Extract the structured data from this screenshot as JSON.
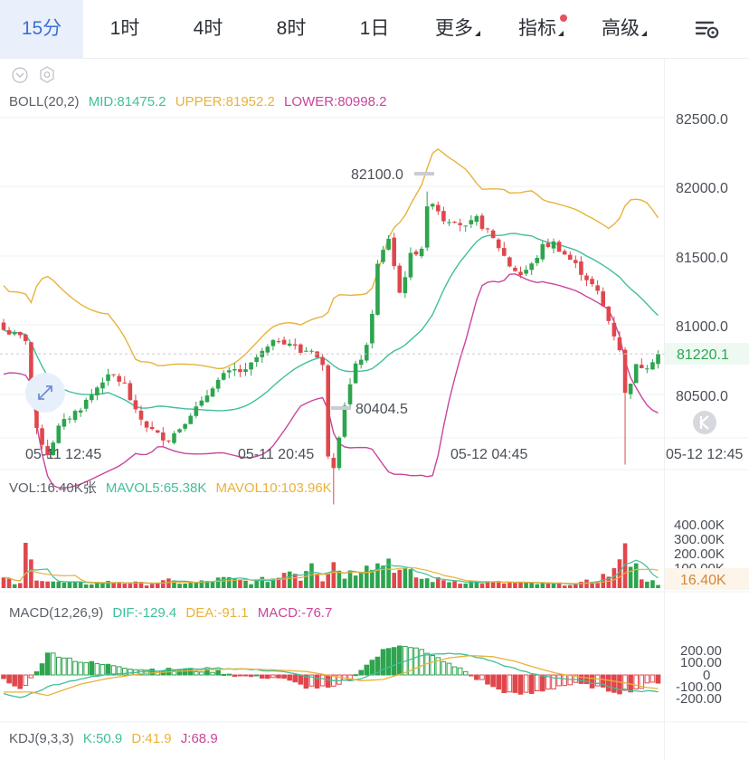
{
  "toolbar": {
    "tabs": [
      {
        "label": "15分",
        "active": true
      },
      {
        "label": "1时"
      },
      {
        "label": "4时"
      },
      {
        "label": "8时"
      },
      {
        "label": "1日"
      },
      {
        "label": "更多",
        "dropdown": true
      },
      {
        "label": "指标",
        "dropdown": true,
        "badge": true
      },
      {
        "label": "高级",
        "dropdown": true
      }
    ],
    "settings_icon": "chart-settings-icon"
  },
  "colors": {
    "up": "#2ea44f",
    "down": "#e0474c",
    "mid": "#3fbf9b",
    "upper": "#e9b23a",
    "lower": "#c9459b",
    "accent": "#3c6fd6"
  },
  "indicators": {
    "boll": {
      "name": "BOLL(20,2)",
      "mid": "MID:81475.2",
      "upper": "UPPER:81952.2",
      "lower": "LOWER:80998.2"
    },
    "vol": {
      "name": "VOL:16.40K张",
      "mavol5": "MAVOL5:65.38K",
      "mavol10": "MAVOL10:103.96K"
    },
    "macd": {
      "name": "MACD(12,26,9)",
      "dif": "DIF:-129.4",
      "dea": "DEA:-91.1",
      "macd": "MACD:-76.7"
    },
    "kdj": {
      "name": "KDJ(9,3,3)",
      "k": "K:50.9",
      "d": "D:41.9",
      "j": "J:68.9"
    }
  },
  "chart_data": {
    "type": "candlestick",
    "price_axis": {
      "ticks": [
        "82500.0",
        "82000.0",
        "81500.0",
        "81000.0",
        "80500.0"
      ],
      "ylim": [
        80200,
        82700
      ]
    },
    "time_axis": {
      "ticks": [
        "05-11 12:45",
        "05-11 20:45",
        "05-12 04:45",
        "05-12 12:45"
      ]
    },
    "current_price": "81220.1",
    "annotations": {
      "high": "82100.0",
      "low": "80404.5"
    },
    "volume_axis": {
      "ticks": [
        "400.00K",
        "300.00K",
        "200.00K",
        "100.00K"
      ],
      "current": "16.40K"
    },
    "macd_axis": {
      "ticks": [
        "200.00",
        "100.00",
        "0",
        "-100.00",
        "-200.00"
      ]
    },
    "price_anchors": [
      [
        0,
        81350
      ],
      [
        2,
        81320
      ],
      [
        4,
        81300
      ],
      [
        6,
        80800
      ],
      [
        8,
        80680
      ],
      [
        10,
        80820
      ],
      [
        12,
        80880
      ],
      [
        14,
        80930
      ],
      [
        16,
        81000
      ],
      [
        18,
        81080
      ],
      [
        20,
        81100
      ],
      [
        22,
        81050
      ],
      [
        24,
        80900
      ],
      [
        26,
        80830
      ],
      [
        28,
        80780
      ],
      [
        30,
        80760
      ],
      [
        32,
        80820
      ],
      [
        34,
        80900
      ],
      [
        36,
        80950
      ],
      [
        38,
        81050
      ],
      [
        40,
        81100
      ],
      [
        42,
        81130
      ],
      [
        44,
        81120
      ],
      [
        46,
        81200
      ],
      [
        48,
        81250
      ],
      [
        50,
        81300
      ],
      [
        52,
        81280
      ],
      [
        54,
        81230
      ],
      [
        56,
        81250
      ],
      [
        58,
        81150
      ],
      [
        59,
        80680
      ],
      [
        60,
        80620
      ],
      [
        62,
        80950
      ],
      [
        64,
        81150
      ],
      [
        66,
        81250
      ],
      [
        67,
        81450
      ],
      [
        68,
        81700
      ],
      [
        70,
        81850
      ],
      [
        72,
        81550
      ],
      [
        74,
        81750
      ],
      [
        76,
        81800
      ],
      [
        77,
        82000
      ],
      [
        78,
        82050
      ],
      [
        80,
        81950
      ],
      [
        82,
        81950
      ],
      [
        84,
        81900
      ],
      [
        86,
        81950
      ],
      [
        88,
        81880
      ],
      [
        90,
        81800
      ],
      [
        92,
        81700
      ],
      [
        94,
        81650
      ],
      [
        96,
        81700
      ],
      [
        98,
        81800
      ],
      [
        100,
        81820
      ],
      [
        102,
        81760
      ],
      [
        104,
        81700
      ],
      [
        106,
        81630
      ],
      [
        108,
        81550
      ],
      [
        110,
        81400
      ],
      [
        112,
        81250
      ],
      [
        113,
        81000
      ],
      [
        115,
        81150
      ],
      [
        117,
        81160
      ],
      [
        119,
        81220
      ]
    ],
    "volume_anchors": [
      [
        0,
        60
      ],
      [
        1,
        45
      ],
      [
        2,
        30
      ],
      [
        3,
        25
      ],
      [
        4,
        260
      ],
      [
        5,
        160
      ],
      [
        6,
        80
      ],
      [
        8,
        50
      ],
      [
        10,
        35
      ],
      [
        15,
        30
      ],
      [
        20,
        40
      ],
      [
        26,
        28
      ],
      [
        30,
        45
      ],
      [
        34,
        30
      ],
      [
        40,
        60
      ],
      [
        45,
        40
      ],
      [
        50,
        70
      ],
      [
        52,
        150
      ],
      [
        54,
        60
      ],
      [
        56,
        220
      ],
      [
        57,
        130
      ],
      [
        58,
        60
      ],
      [
        60,
        170
      ],
      [
        62,
        90
      ],
      [
        64,
        110
      ],
      [
        66,
        200
      ],
      [
        68,
        150
      ],
      [
        70,
        190
      ],
      [
        72,
        110
      ],
      [
        74,
        90
      ],
      [
        76,
        60
      ],
      [
        80,
        50
      ],
      [
        85,
        40
      ],
      [
        90,
        35
      ],
      [
        95,
        30
      ],
      [
        100,
        25
      ],
      [
        105,
        30
      ],
      [
        108,
        60
      ],
      [
        110,
        90
      ],
      [
        112,
        140
      ],
      [
        113,
        430
      ],
      [
        114,
        180
      ],
      [
        116,
        80
      ],
      [
        118,
        40
      ],
      [
        119,
        16
      ]
    ],
    "macd_anchors": [
      [
        0,
        -150
      ],
      [
        3,
        -180
      ],
      [
        6,
        -130
      ],
      [
        9,
        -80
      ],
      [
        14,
        -30
      ],
      [
        20,
        10
      ],
      [
        26,
        30
      ],
      [
        32,
        45
      ],
      [
        38,
        55
      ],
      [
        44,
        45
      ],
      [
        50,
        30
      ],
      [
        55,
        -10
      ],
      [
        60,
        -50
      ],
      [
        64,
        -40
      ],
      [
        68,
        20
      ],
      [
        72,
        100
      ],
      [
        76,
        150
      ],
      [
        80,
        170
      ],
      [
        84,
        160
      ],
      [
        88,
        120
      ],
      [
        92,
        60
      ],
      [
        96,
        10
      ],
      [
        100,
        -20
      ],
      [
        104,
        -40
      ],
      [
        108,
        -70
      ],
      [
        112,
        -110
      ],
      [
        116,
        -130
      ],
      [
        119,
        -129
      ]
    ]
  }
}
